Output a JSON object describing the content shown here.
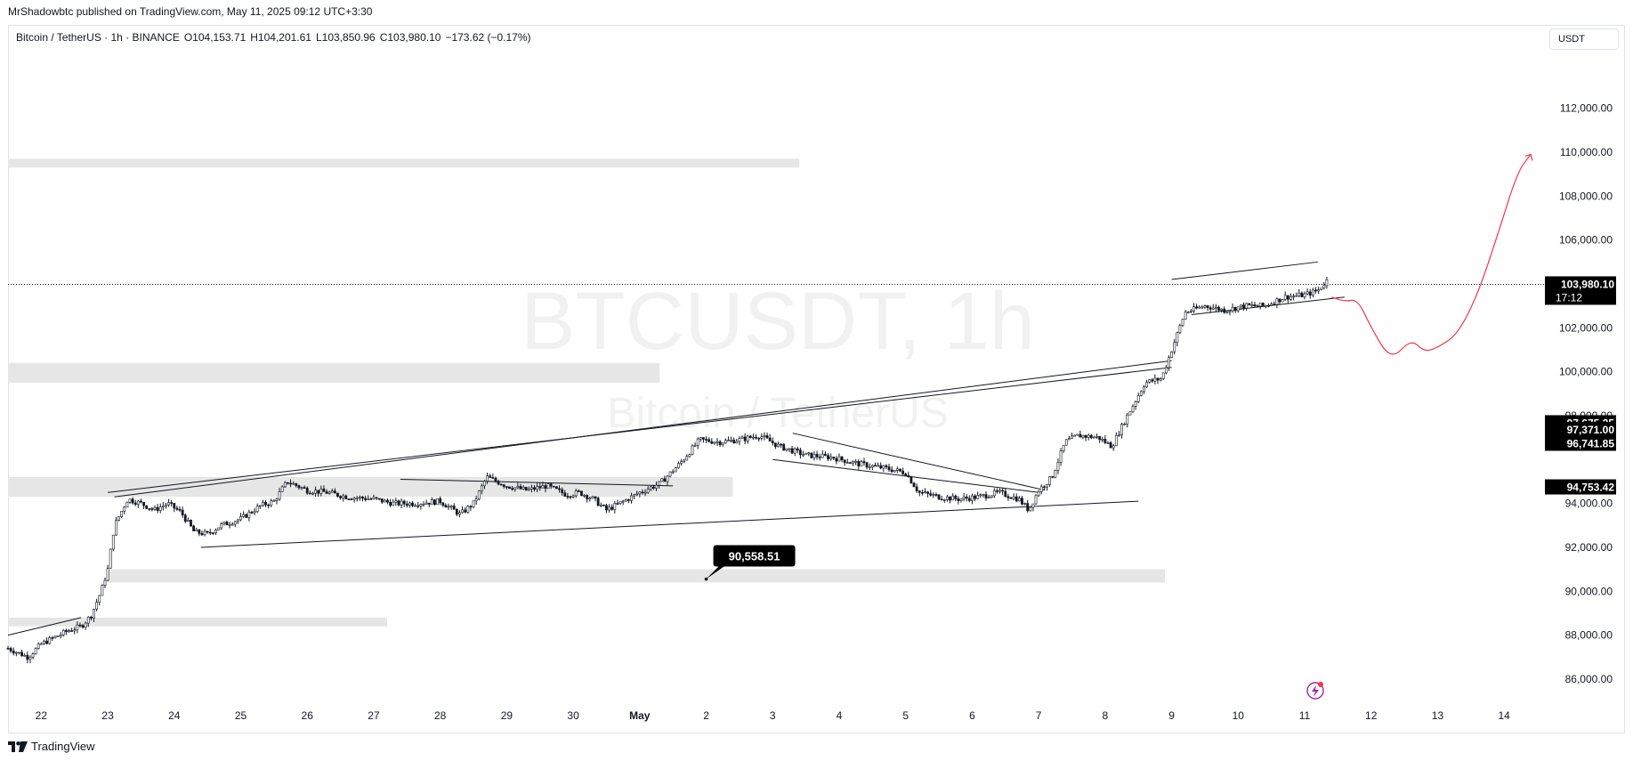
{
  "header": {
    "published_by": "MrShadowbtc published on TradingView.com, May 11, 2025 09:12 UTC+3:30"
  },
  "legend": {
    "symbol": "Bitcoin / TetherUS · 1h · BINANCE",
    "open": "O104,153.71",
    "high": "H104,201.61",
    "low": "L103,850.96",
    "close": "C103,980.10",
    "change": "−173.62 (−0.17%)"
  },
  "currency": "USDT",
  "watermark": {
    "line1": "BTCUSDT, 1h",
    "line2": "Bitcoin / TetherUS"
  },
  "footer": {
    "brand": "TradingView"
  },
  "colors": {
    "candle": "#131722",
    "zone": "#e6e6e6",
    "projection": "#f23645",
    "label_bg": "#000000",
    "label_text": "#ffffff",
    "axis_text": "#131722",
    "lightning_accent": "#9c27b0"
  },
  "chart_data": {
    "type": "candlestick",
    "symbol": "BTCUSDT",
    "interval": "1h",
    "exchange": "BINANCE",
    "xlim_days": [
      21.5,
      44.6
    ],
    "ylim": [
      84700,
      114500
    ],
    "x_ticks": [
      {
        "label": "22",
        "day": 22
      },
      {
        "label": "23",
        "day": 23
      },
      {
        "label": "24",
        "day": 24
      },
      {
        "label": "25",
        "day": 25
      },
      {
        "label": "26",
        "day": 26
      },
      {
        "label": "27",
        "day": 27
      },
      {
        "label": "28",
        "day": 28
      },
      {
        "label": "29",
        "day": 29
      },
      {
        "label": "30",
        "day": 30
      },
      {
        "label": "May",
        "day": 31
      },
      {
        "label": "2",
        "day": 32
      },
      {
        "label": "3",
        "day": 33
      },
      {
        "label": "4",
        "day": 34
      },
      {
        "label": "5",
        "day": 35
      },
      {
        "label": "6",
        "day": 36
      },
      {
        "label": "7",
        "day": 37
      },
      {
        "label": "8",
        "day": 38
      },
      {
        "label": "9",
        "day": 39
      },
      {
        "label": "10",
        "day": 40
      },
      {
        "label": "11",
        "day": 41
      },
      {
        "label": "12",
        "day": 42
      },
      {
        "label": "13",
        "day": 43
      },
      {
        "label": "14",
        "day": 44
      }
    ],
    "y_ticks": [
      {
        "label": "86,000.00",
        "value": 86000
      },
      {
        "label": "88,000.00",
        "value": 88000
      },
      {
        "label": "90,000.00",
        "value": 90000
      },
      {
        "label": "92,000.00",
        "value": 92000
      },
      {
        "label": "94,000.00",
        "value": 94000
      },
      {
        "label": "98,000.00",
        "value": 98000
      },
      {
        "label": "100,000.00",
        "value": 100000
      },
      {
        "label": "102,000.00",
        "value": 102000
      },
      {
        "label": "106,000.00",
        "value": 106000
      },
      {
        "label": "108,000.00",
        "value": 108000
      },
      {
        "label": "110,000.00",
        "value": 110000
      },
      {
        "label": "112,000.00",
        "value": 112000
      }
    ],
    "price_path": [
      [
        21.5,
        87400
      ],
      [
        21.8,
        87000
      ],
      [
        22.0,
        87600
      ],
      [
        22.2,
        87900
      ],
      [
        22.4,
        88200
      ],
      [
        22.6,
        88400
      ],
      [
        22.75,
        88900
      ],
      [
        22.9,
        90000
      ],
      [
        23.0,
        91000
      ],
      [
        23.1,
        93000
      ],
      [
        23.3,
        94200
      ],
      [
        23.5,
        94000
      ],
      [
        23.7,
        93700
      ],
      [
        23.9,
        94000
      ],
      [
        24.1,
        93600
      ],
      [
        24.3,
        92700
      ],
      [
        24.5,
        92600
      ],
      [
        24.7,
        93000
      ],
      [
        25.0,
        93300
      ],
      [
        25.3,
        93900
      ],
      [
        25.5,
        94100
      ],
      [
        25.7,
        95000
      ],
      [
        26.0,
        94600
      ],
      [
        26.3,
        94500
      ],
      [
        26.6,
        94300
      ],
      [
        27.0,
        94200
      ],
      [
        27.3,
        94000
      ],
      [
        27.6,
        94000
      ],
      [
        28.0,
        94100
      ],
      [
        28.3,
        93500
      ],
      [
        28.5,
        94000
      ],
      [
        28.7,
        95200
      ],
      [
        29.0,
        94800
      ],
      [
        29.3,
        94600
      ],
      [
        29.6,
        94800
      ],
      [
        29.9,
        94400
      ],
      [
        30.1,
        94500
      ],
      [
        30.3,
        94200
      ],
      [
        30.5,
        93700
      ],
      [
        30.7,
        94000
      ],
      [
        31.0,
        94500
      ],
      [
        31.3,
        94900
      ],
      [
        31.6,
        95800
      ],
      [
        31.9,
        96900
      ],
      [
        32.2,
        96800
      ],
      [
        32.5,
        96900
      ],
      [
        32.8,
        97100
      ],
      [
        33.1,
        96600
      ],
      [
        33.5,
        96200
      ],
      [
        33.9,
        96100
      ],
      [
        34.3,
        95800
      ],
      [
        34.7,
        95600
      ],
      [
        35.0,
        95400
      ],
      [
        35.2,
        94500
      ],
      [
        35.5,
        94300
      ],
      [
        35.8,
        94200
      ],
      [
        36.1,
        94300
      ],
      [
        36.4,
        94500
      ],
      [
        36.7,
        94200
      ],
      [
        36.85,
        93700
      ],
      [
        37.0,
        94600
      ],
      [
        37.2,
        95200
      ],
      [
        37.4,
        96800
      ],
      [
        37.6,
        97100
      ],
      [
        37.9,
        97000
      ],
      [
        38.1,
        96600
      ],
      [
        38.3,
        97800
      ],
      [
        38.6,
        99500
      ],
      [
        38.85,
        99700
      ],
      [
        39.0,
        101000
      ],
      [
        39.2,
        102700
      ],
      [
        39.5,
        103000
      ],
      [
        39.8,
        102800
      ],
      [
        40.1,
        103000
      ],
      [
        40.4,
        103000
      ],
      [
        40.7,
        103400
      ],
      [
        41.0,
        103500
      ],
      [
        41.2,
        103700
      ],
      [
        41.35,
        104200
      ]
    ],
    "consolidation_zones": [
      {
        "from_day": 21.5,
        "to_day": 33.4,
        "low": 109300,
        "high": 109700
      },
      {
        "from_day": 21.5,
        "to_day": 31.3,
        "low": 99500,
        "high": 100400
      },
      {
        "from_day": 21.5,
        "to_day": 32.4,
        "low": 94300,
        "high": 95200
      },
      {
        "from_day": 23.0,
        "to_day": 38.9,
        "low": 90400,
        "high": 91000
      },
      {
        "from_day": 21.5,
        "to_day": 27.2,
        "low": 88400,
        "high": 88800
      }
    ],
    "trendlines": [
      {
        "from": [
          24.4,
          92000
        ],
        "to": [
          38.5,
          94100
        ]
      },
      {
        "from": [
          23.1,
          94300
        ],
        "to": [
          39.0,
          100500
        ]
      },
      {
        "from": [
          23.0,
          94500
        ],
        "to": [
          39.0,
          100200
        ]
      },
      {
        "from": [
          33.3,
          97200
        ],
        "to": [
          37.1,
          94600
        ]
      },
      {
        "from": [
          33.0,
          96000
        ],
        "to": [
          37.0,
          94500
        ]
      },
      {
        "from": [
          27.4,
          95100
        ],
        "to": [
          31.5,
          94800
        ]
      },
      {
        "from": [
          21.5,
          88000
        ],
        "to": [
          22.6,
          88800
        ]
      },
      {
        "from": [
          39.0,
          104200
        ],
        "to": [
          41.2,
          105000
        ]
      },
      {
        "from": [
          39.3,
          102600
        ],
        "to": [
          41.6,
          103400
        ]
      }
    ],
    "projection_path": [
      [
        41.4,
        103400
      ],
      [
        41.6,
        103200
      ],
      [
        41.8,
        103300
      ],
      [
        42.0,
        102000
      ],
      [
        42.3,
        100500
      ],
      [
        42.6,
        101500
      ],
      [
        42.8,
        100900
      ],
      [
        43.0,
        101100
      ],
      [
        43.3,
        101700
      ],
      [
        43.6,
        103500
      ],
      [
        43.9,
        106200
      ],
      [
        44.2,
        109100
      ],
      [
        44.4,
        109900
      ]
    ],
    "last_price": 103980.1,
    "countdown": "17:12",
    "price_labels": [
      {
        "text": "103,980.10",
        "value": 103980.1
      },
      {
        "text": "97,675.25",
        "value": 97675.25
      },
      {
        "text": "97,371.00",
        "value": 97371.0
      },
      {
        "text": "96,741.85",
        "value": 96741.85
      },
      {
        "text": "94,753.42",
        "value": 94753.42
      }
    ],
    "callout": {
      "text": "90,558.51",
      "value": 90558.51,
      "day": 32.0
    }
  }
}
